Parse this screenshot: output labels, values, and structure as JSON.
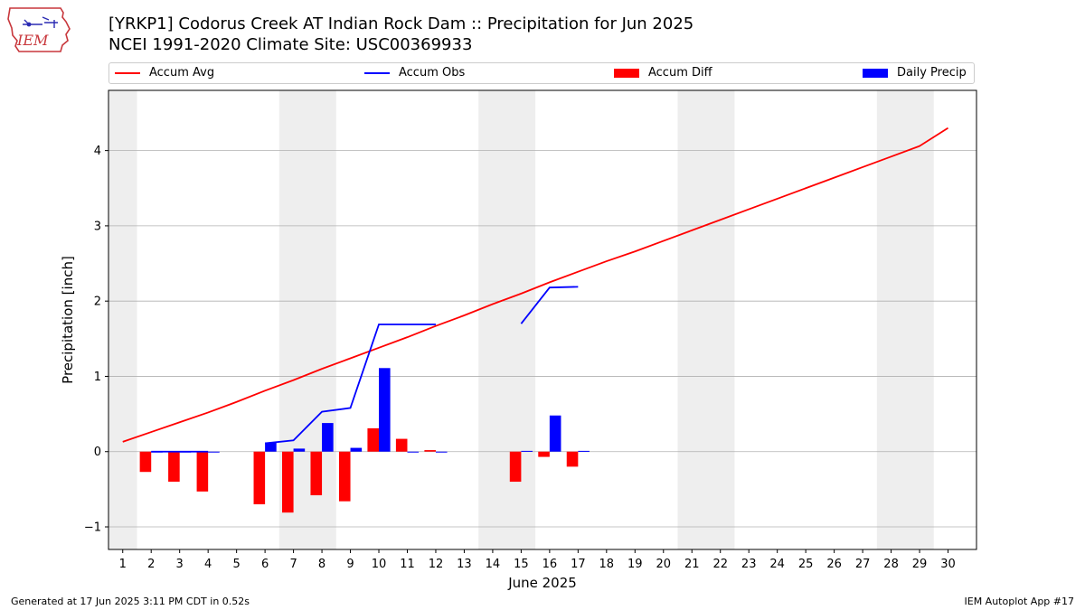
{
  "header": {
    "title_line1": "[YRKP1] Codorus Creek  AT Indian Rock Dam :: Precipitation for Jun 2025",
    "title_line2": "NCEI 1991-2020 Climate Site: USC00369933",
    "logo_text": "IEM"
  },
  "footer": {
    "left": "Generated at 17 Jun 2025 3:11 PM CDT in 0.52s",
    "right": "IEM Autoplot App #17"
  },
  "colors": {
    "accum_avg": "#ff0000",
    "accum_obs": "#0000ff",
    "accum_diff": "#ff0000",
    "daily_precip": "#0000ff",
    "weekend_shade": "#eeeeee",
    "grid": "#b0b0b0"
  },
  "chart_data": {
    "type": "bar",
    "title": "[YRKP1] Codorus Creek  AT Indian Rock Dam :: Precipitation for Jun 2025",
    "xlabel": "June 2025",
    "ylabel": "Precipitation [inch]",
    "xlim": [
      0.5,
      31.0
    ],
    "ylim": [
      -1.3,
      4.8
    ],
    "x_ticks": [
      1,
      2,
      3,
      4,
      5,
      6,
      7,
      8,
      9,
      10,
      11,
      12,
      13,
      14,
      15,
      16,
      17,
      18,
      19,
      20,
      21,
      22,
      23,
      24,
      25,
      26,
      27,
      28,
      29,
      30
    ],
    "y_ticks": [
      -1,
      0,
      1,
      2,
      3,
      4
    ],
    "y_tick_labels": [
      "−1",
      "0",
      "1",
      "2",
      "3",
      "4"
    ],
    "legend": {
      "placement": "top",
      "entries": [
        "Accum Avg",
        "Accum Obs",
        "Accum Diff",
        "Daily Precip"
      ]
    },
    "weekend_spans": [
      [
        0.5,
        1.5
      ],
      [
        6.5,
        8.5
      ],
      [
        13.5,
        15.5
      ],
      [
        20.5,
        22.5
      ],
      [
        27.5,
        29.5
      ]
    ],
    "series": [
      {
        "name": "Accum Avg",
        "kind": "line",
        "x": [
          1,
          2,
          3,
          4,
          5,
          6,
          7,
          8,
          9,
          10,
          11,
          12,
          13,
          14,
          15,
          16,
          17,
          18,
          19,
          20,
          21,
          22,
          23,
          24,
          25,
          26,
          27,
          28,
          29,
          30
        ],
        "values": [
          0.13,
          0.26,
          0.39,
          0.52,
          0.66,
          0.81,
          0.95,
          1.1,
          1.24,
          1.38,
          1.52,
          1.67,
          1.81,
          1.96,
          2.1,
          2.25,
          2.39,
          2.53,
          2.66,
          2.8,
          2.94,
          3.08,
          3.22,
          3.36,
          3.5,
          3.64,
          3.78,
          3.92,
          4.06,
          4.3
        ]
      },
      {
        "name": "Accum Obs",
        "kind": "line",
        "segments": [
          {
            "x": [
              2,
              3,
              4
            ],
            "values": [
              0.0,
              0.0,
              0.0
            ]
          },
          {
            "x": [
              6,
              7,
              8,
              9,
              10,
              11,
              12
            ],
            "values": [
              0.11,
              0.15,
              0.53,
              0.58,
              1.69,
              1.69,
              1.69
            ]
          },
          {
            "x": [
              15,
              16,
              17
            ],
            "values": [
              1.7,
              2.18,
              2.19
            ]
          }
        ]
      },
      {
        "name": "Accum Diff",
        "kind": "bar",
        "x": [
          2,
          3,
          4,
          6,
          7,
          8,
          9,
          10,
          11,
          12,
          15,
          16,
          17
        ],
        "values": [
          -0.27,
          -0.4,
          -0.53,
          -0.7,
          -0.81,
          -0.58,
          -0.66,
          0.31,
          0.17,
          0.02,
          -0.4,
          -0.07,
          -0.2
        ]
      },
      {
        "name": "Daily Precip",
        "kind": "bar",
        "x": [
          2,
          3,
          4,
          6,
          7,
          8,
          9,
          10,
          11,
          12,
          15,
          16,
          17
        ],
        "values": [
          0.0,
          0.0,
          0.0,
          0.12,
          0.04,
          0.38,
          0.05,
          1.11,
          0.0,
          0.0,
          0.01,
          0.48,
          0.01
        ]
      }
    ]
  }
}
